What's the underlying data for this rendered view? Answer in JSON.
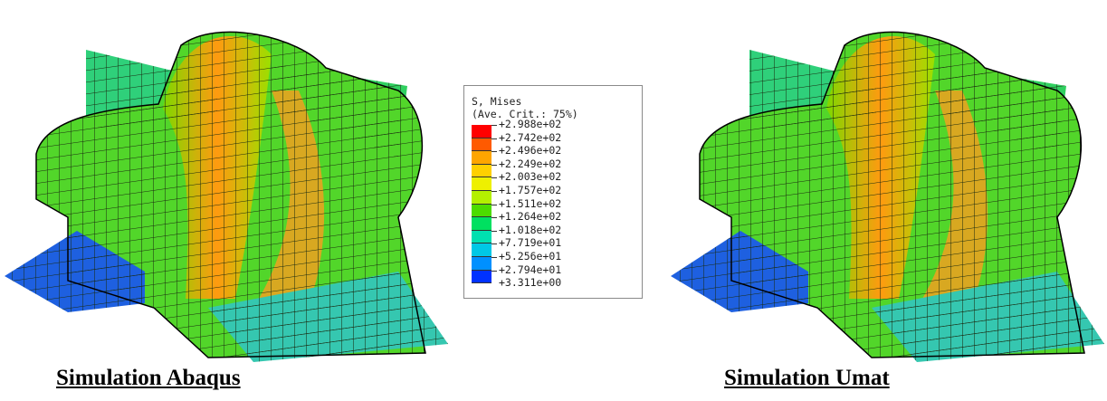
{
  "captions": {
    "left": "Simulation Abaqus",
    "right": "Simulation Umat"
  },
  "legend": {
    "title": "S, Mises",
    "subtitle": "(Ave. Crit.: 75%)",
    "levels": [
      "+2.988e+02",
      "+2.742e+02",
      "+2.496e+02",
      "+2.249e+02",
      "+2.003e+02",
      "+1.757e+02",
      "+1.511e+02",
      "+1.264e+02",
      "+1.018e+02",
      "+7.719e+01",
      "+5.256e+01",
      "+2.794e+01",
      "+3.311e+00"
    ],
    "colors": [
      "#ff0000",
      "#ff5a00",
      "#ffa500",
      "#ffd000",
      "#eef000",
      "#b4f000",
      "#4cdc00",
      "#00e060",
      "#00e0b0",
      "#00c8e6",
      "#0090ff",
      "#0032ff"
    ]
  }
}
